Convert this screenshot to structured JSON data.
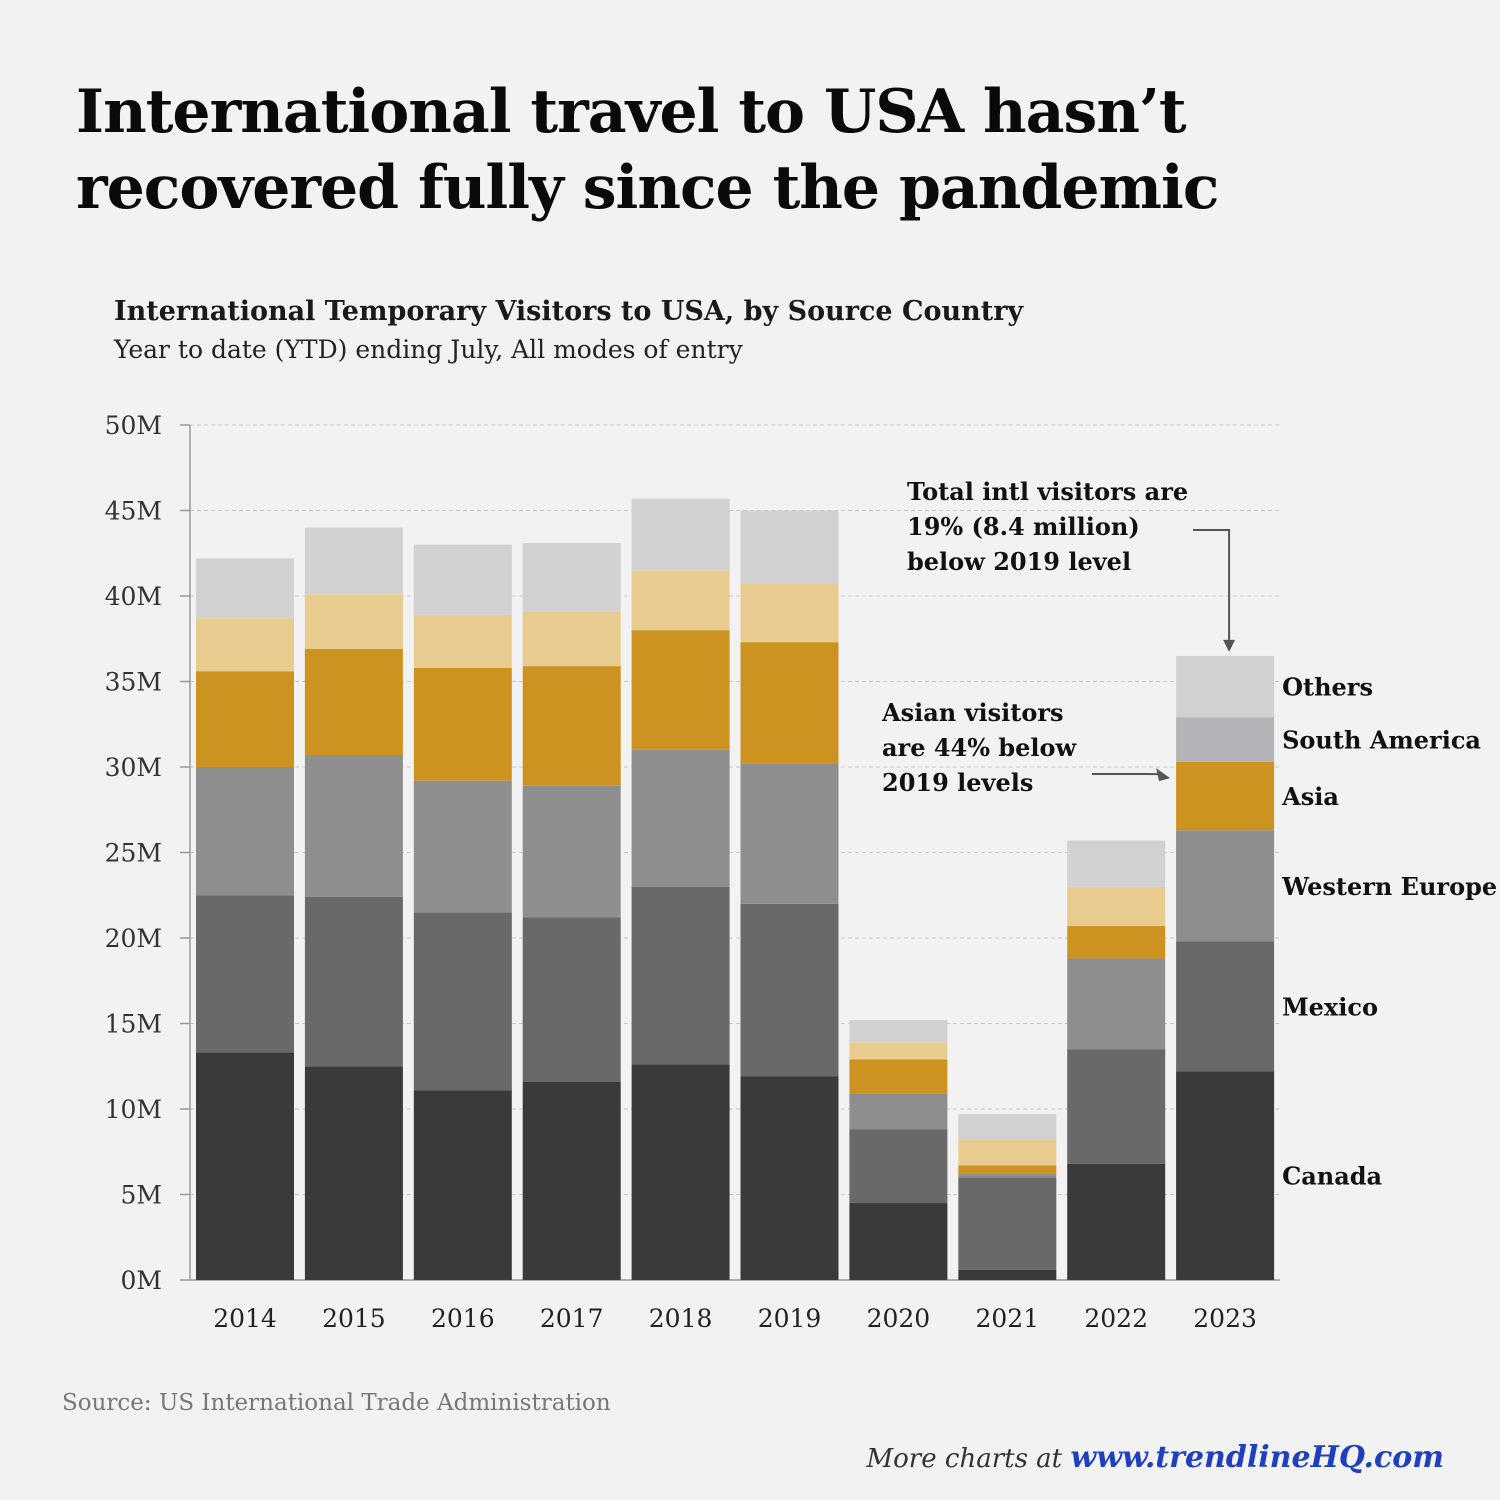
{
  "headline": {
    "line1": "International travel to USA hasn’t",
    "line2": "recovered fully since the pandemic"
  },
  "chart_title": "International Temporary Visitors to USA, by Source Country",
  "chart_subtitle": "Year to date (YTD) ending July, All modes of entry",
  "source": "Source: US International Trade Administration",
  "footer": {
    "prefix": "More charts at",
    "link": "www.trendlineHQ.com"
  },
  "colors": {
    "canada": "#3a3a3a",
    "mexico": "#696969",
    "western_europe": "#8e8e8e",
    "asia": "#cc9320",
    "south_america_pre2023": "#e8cc8f",
    "south_america_2023": "#b3b3b8",
    "others": "#d1d1d1"
  },
  "chart_data": {
    "type": "bar",
    "stacked": true,
    "categories": [
      "2014",
      "2015",
      "2016",
      "2017",
      "2018",
      "2019",
      "2020",
      "2021",
      "2022",
      "2023"
    ],
    "series": [
      {
        "name": "Canada",
        "values": [
          13.3,
          12.5,
          11.1,
          11.6,
          12.6,
          11.9,
          4.5,
          0.6,
          6.8,
          12.2
        ]
      },
      {
        "name": "Mexico",
        "values": [
          9.2,
          9.9,
          10.4,
          9.6,
          10.4,
          10.1,
          4.3,
          5.4,
          6.7,
          7.6
        ]
      },
      {
        "name": "Western Europe",
        "values": [
          7.5,
          8.3,
          7.7,
          7.7,
          8.0,
          8.2,
          2.1,
          0.2,
          5.3,
          6.5
        ]
      },
      {
        "name": "Asia",
        "values": [
          5.6,
          6.2,
          6.6,
          7.0,
          7.0,
          7.1,
          2.0,
          0.5,
          1.9,
          4.0
        ]
      },
      {
        "name": "South America",
        "values": [
          3.1,
          3.2,
          3.1,
          3.2,
          3.5,
          3.4,
          1.0,
          1.5,
          2.3,
          2.6
        ]
      },
      {
        "name": "Others",
        "values": [
          3.5,
          3.9,
          4.1,
          4.0,
          4.2,
          4.3,
          1.3,
          1.5,
          2.7,
          3.6
        ]
      }
    ],
    "ylim": [
      0,
      50
    ],
    "yticks": [
      "0M",
      "5M",
      "10M",
      "15M",
      "20M",
      "25M",
      "30M",
      "35M",
      "40M",
      "45M",
      "50M"
    ],
    "ytick_values": [
      0,
      5,
      10,
      15,
      20,
      25,
      30,
      35,
      40,
      45,
      50
    ],
    "grid": true,
    "legend_position": "right of 2023 bar",
    "annotations": [
      {
        "text_lines": [
          "Total intl visitors are",
          "19% (8.4 million)",
          "below 2019 level"
        ],
        "target": "2023 total"
      },
      {
        "text_lines": [
          "Asian visitors",
          "are 44% below",
          "2019 levels"
        ],
        "target": "2023 Asia"
      }
    ]
  }
}
